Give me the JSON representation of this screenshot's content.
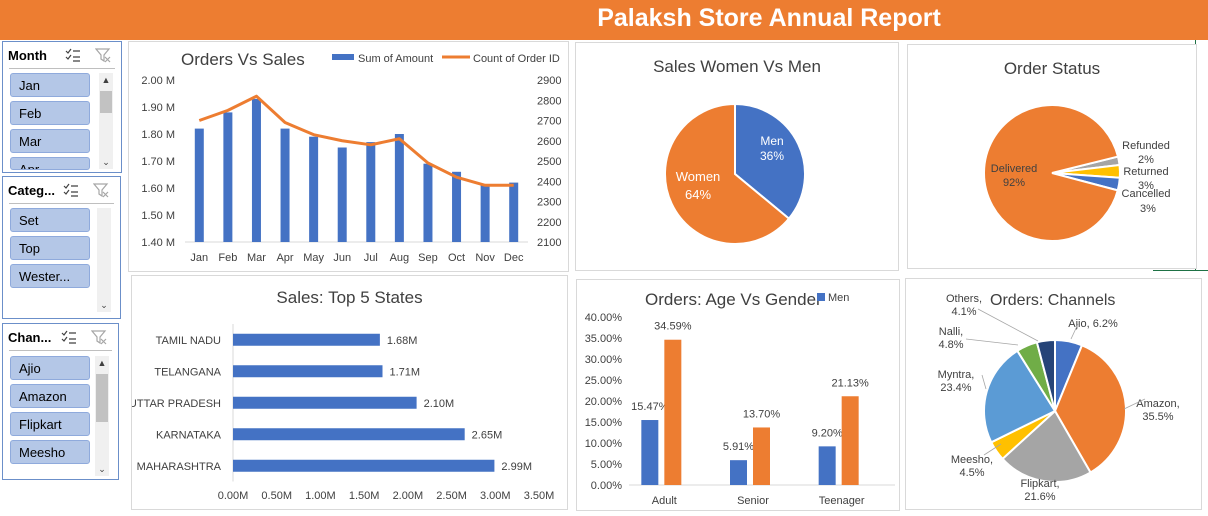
{
  "header": {
    "title": "Palaksh Store Annual Report"
  },
  "colors": {
    "blue": "#4472c4",
    "orange": "#ed7d31",
    "gray": "#a5a5a5",
    "yellow": "#ffc000",
    "lightblue": "#5b9bd5",
    "green": "#70ad47",
    "navy": "#264478",
    "banner": "#ed7d31"
  },
  "slicers": {
    "month": {
      "title": "Month",
      "items": [
        "Jan",
        "Feb",
        "Mar",
        "Apr"
      ]
    },
    "category": {
      "title": "Categ...",
      "items": [
        "Set",
        "Top",
        "Wester..."
      ]
    },
    "channel": {
      "title": "Chan...",
      "items": [
        "Ajio",
        "Amazon",
        "Flipkart",
        "Meesho"
      ]
    }
  },
  "orders_vs_sales": {
    "title": "Orders Vs Sales",
    "legend": [
      "Sum of Amount",
      "Count of Order ID"
    ],
    "chart_data": {
      "type": "bar",
      "categories": [
        "Jan",
        "Feb",
        "Mar",
        "Apr",
        "May",
        "Jun",
        "Jul",
        "Aug",
        "Sep",
        "Oct",
        "Nov",
        "Dec"
      ],
      "series": [
        {
          "name": "Sum of Amount",
          "type": "bar",
          "axis": "left",
          "values": [
            1.82,
            1.88,
            1.93,
            1.82,
            1.79,
            1.75,
            1.77,
            1.8,
            1.69,
            1.66,
            1.61,
            1.62
          ]
        },
        {
          "name": "Count of Order ID",
          "type": "line",
          "axis": "right",
          "values": [
            2700,
            2750,
            2820,
            2690,
            2630,
            2600,
            2580,
            2610,
            2490,
            2420,
            2380,
            2380
          ]
        }
      ],
      "ylim": [
        1.4,
        2.0
      ],
      "y2lim": [
        2100,
        2900
      ],
      "yticks": [
        "1.40 M",
        "1.50 M",
        "1.60 M",
        "1.70 M",
        "1.80 M",
        "1.90 M",
        "2.00 M"
      ],
      "y2ticks": [
        "2100",
        "2200",
        "2300",
        "2400",
        "2500",
        "2600",
        "2700",
        "2800",
        "2900"
      ]
    }
  },
  "sales_gender": {
    "title": "Sales Women Vs Men",
    "chart_data": {
      "type": "pie",
      "slices": [
        {
          "label": "Men",
          "pct": "36%",
          "value": 36
        },
        {
          "label": "Women",
          "pct": "64%",
          "value": 64
        }
      ]
    }
  },
  "order_status": {
    "title": "Order Status",
    "chart_data": {
      "type": "pie",
      "slices": [
        {
          "label": "Delivered",
          "pct": "92%",
          "value": 92
        },
        {
          "label": "Refunded",
          "pct": "2%",
          "value": 2
        },
        {
          "label": "Returned",
          "pct": "3%",
          "value": 3
        },
        {
          "label": "Cancelled",
          "pct": "3%",
          "value": 3
        }
      ]
    }
  },
  "top_states": {
    "title": "Sales: Top 5 States",
    "chart_data": {
      "type": "bar",
      "orientation": "horizontal",
      "categories": [
        "TAMIL NADU",
        "TELANGANA",
        "UTTAR PRADESH",
        "KARNATAKA",
        "MAHARASHTRA"
      ],
      "values": [
        1.68,
        1.71,
        2.1,
        2.65,
        2.99
      ],
      "labels": [
        "1.68M",
        "1.71M",
        "2.10M",
        "2.65M",
        "2.99M"
      ],
      "xlim": [
        0,
        3.5
      ],
      "xticks": [
        "0.00M",
        "0.50M",
        "1.00M",
        "1.50M",
        "2.00M",
        "2.50M",
        "3.00M",
        "3.50M"
      ]
    }
  },
  "age_gender": {
    "title": "Orders: Age Vs Gender",
    "legend": [
      "Men"
    ],
    "chart_data": {
      "type": "bar",
      "categories": [
        "Adult",
        "Senior",
        "Teenager"
      ],
      "series": [
        {
          "name": "Men",
          "values": [
            15.47,
            5.91,
            9.2
          ],
          "labels": [
            "15.47%",
            "5.91%",
            "9.20%"
          ]
        },
        {
          "values": [
            34.59,
            13.7,
            21.13
          ],
          "labels": [
            "34.59%",
            "13.70%",
            "21.13%"
          ]
        }
      ],
      "ylim": [
        0,
        40
      ],
      "yticks": [
        "0.00%",
        "5.00%",
        "10.00%",
        "15.00%",
        "20.00%",
        "25.00%",
        "30.00%",
        "35.00%",
        "40.00%"
      ]
    }
  },
  "channels": {
    "title": "Orders: Channels",
    "chart_data": {
      "type": "pie",
      "slices": [
        {
          "label": "Ajio, 6.2%",
          "value": 6.2
        },
        {
          "label": "Amazon, 35.5%",
          "value": 35.5
        },
        {
          "label": "Flipkart, 21.6%",
          "value": 21.6
        },
        {
          "label": "Meesho, 4.5%",
          "value": 4.5
        },
        {
          "label": "Myntra, 23.4%",
          "value": 23.4
        },
        {
          "label": "Nalli, 4.8%",
          "value": 4.8
        },
        {
          "label": "Others, 4.1%",
          "value": 4.1
        }
      ]
    }
  }
}
